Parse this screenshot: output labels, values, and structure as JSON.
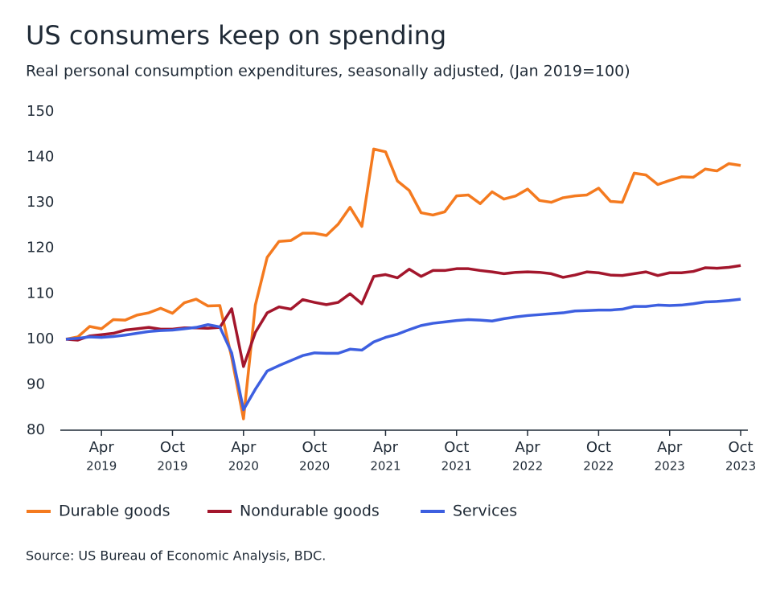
{
  "chart_data": {
    "type": "line",
    "title": "US consumers keep on spending",
    "subtitle": "Real personal consumption expenditures, seasonally adjusted, (Jan 2019=100)",
    "source": "Source: US Bureau of Economic Analysis, BDC.",
    "x": [
      "2019-01",
      "2019-02",
      "2019-03",
      "2019-04",
      "2019-05",
      "2019-06",
      "2019-07",
      "2019-08",
      "2019-09",
      "2019-10",
      "2019-11",
      "2019-12",
      "2020-01",
      "2020-02",
      "2020-03",
      "2020-04",
      "2020-05",
      "2020-06",
      "2020-07",
      "2020-08",
      "2020-09",
      "2020-10",
      "2020-11",
      "2020-12",
      "2021-01",
      "2021-02",
      "2021-03",
      "2021-04",
      "2021-05",
      "2021-06",
      "2021-07",
      "2021-08",
      "2021-09",
      "2021-10",
      "2021-11",
      "2021-12",
      "2022-01",
      "2022-02",
      "2022-03",
      "2022-04",
      "2022-05",
      "2022-06",
      "2022-07",
      "2022-08",
      "2022-09",
      "2022-10",
      "2022-11",
      "2022-12",
      "2023-01",
      "2023-02",
      "2023-03",
      "2023-04",
      "2023-05",
      "2023-06",
      "2023-07",
      "2023-08",
      "2023-09",
      "2023-10"
    ],
    "series": [
      {
        "name": "Durable goods",
        "color": "#f47a1f",
        "values": [
          100,
          100.5,
          102.8,
          102.3,
          104.3,
          104.2,
          105.3,
          105.8,
          106.8,
          105.7,
          108,
          108.8,
          107.3,
          107.4,
          96,
          82.5,
          107.5,
          118,
          121.5,
          121.7,
          123.3,
          123.3,
          122.8,
          125.3,
          129,
          124.8,
          141.8,
          141.2,
          134.8,
          132.7,
          127.8,
          127.3,
          128,
          131.5,
          131.7,
          129.8,
          132.4,
          130.8,
          131.5,
          133,
          130.5,
          130.1,
          131.1,
          131.5,
          131.7,
          133.2,
          130.3,
          130.1,
          136.5,
          136.1,
          134,
          134.9,
          135.7,
          135.6,
          137.4,
          137,
          138.6,
          138.2
        ]
      },
      {
        "name": "Nondurable goods",
        "color": "#a3162c",
        "values": [
          100,
          99.8,
          100.7,
          101,
          101.3,
          102,
          102.3,
          102.6,
          102.2,
          102.2,
          102.5,
          102.5,
          102.4,
          102.6,
          106.7,
          94,
          101.5,
          105.8,
          107.1,
          106.6,
          108.7,
          108.1,
          107.6,
          108.1,
          110,
          107.8,
          113.8,
          114.2,
          113.5,
          115.4,
          113.8,
          115.1,
          115.1,
          115.5,
          115.5,
          115.1,
          114.8,
          114.4,
          114.7,
          114.8,
          114.7,
          114.4,
          113.6,
          114.1,
          114.8,
          114.6,
          114.1,
          114,
          114.4,
          114.8,
          114,
          114.6,
          114.6,
          114.9,
          115.7,
          115.6,
          115.8,
          116.2
        ]
      },
      {
        "name": "Services",
        "color": "#3d5fe0",
        "values": [
          100,
          100.2,
          100.5,
          100.4,
          100.6,
          100.9,
          101.3,
          101.7,
          101.9,
          102,
          102.3,
          102.6,
          103.2,
          102.7,
          97,
          84.5,
          89,
          93,
          94.2,
          95.3,
          96.4,
          97,
          96.9,
          96.9,
          97.8,
          97.6,
          99.4,
          100.4,
          101.1,
          102.1,
          103,
          103.5,
          103.8,
          104.1,
          104.3,
          104.2,
          104,
          104.5,
          104.9,
          105.2,
          105.4,
          105.6,
          105.8,
          106.2,
          106.3,
          106.4,
          106.4,
          106.6,
          107.2,
          107.2,
          107.5,
          107.4,
          107.5,
          107.8,
          108.2,
          108.3,
          108.5,
          108.8
        ]
      }
    ],
    "xticks": [
      {
        "value": "2019-04",
        "month": "Apr",
        "year": "2019"
      },
      {
        "value": "2019-10",
        "month": "Oct",
        "year": "2019"
      },
      {
        "value": "2020-04",
        "month": "Apr",
        "year": "2020"
      },
      {
        "value": "2020-10",
        "month": "Oct",
        "year": "2020"
      },
      {
        "value": "2021-04",
        "month": "Apr",
        "year": "2021"
      },
      {
        "value": "2021-10",
        "month": "Oct",
        "year": "2021"
      },
      {
        "value": "2022-04",
        "month": "Apr",
        "year": "2022"
      },
      {
        "value": "2022-10",
        "month": "Oct",
        "year": "2022"
      },
      {
        "value": "2023-04",
        "month": "Apr",
        "year": "2023"
      },
      {
        "value": "2023-10",
        "month": "Oct",
        "year": "2023"
      }
    ],
    "ylim": [
      80,
      150
    ],
    "yticks": [
      80,
      90,
      100,
      110,
      120,
      130,
      140,
      150
    ],
    "grid": false,
    "legend": "bottom"
  }
}
